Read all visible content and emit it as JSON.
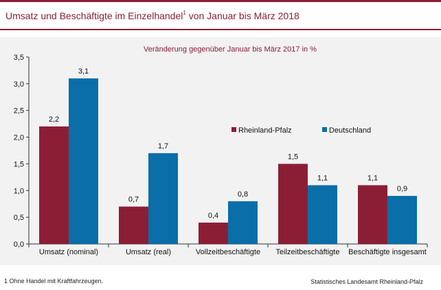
{
  "header": {
    "title": "Umsatz und Beschäftigte im Einzelhandel",
    "title_footnote_mark": "1",
    "title_suffix": " von Januar bis März 2018"
  },
  "chart_data": {
    "type": "bar",
    "subtitle": "Veränderung gegenüber Januar bis März 2017 in %",
    "categories": [
      "Umsatz (nominal)",
      "Umsatz (real)",
      "Vollzeitbeschäftigte",
      "Teilzeitbeschäftigte",
      "Beschäftigte insgesamt"
    ],
    "series": [
      {
        "name": "Rheinland-Pfalz",
        "values": [
          2.2,
          0.7,
          0.4,
          1.5,
          1.1
        ],
        "labels": [
          "2,2",
          "0,7",
          "0,4",
          "1,5",
          "1,1"
        ],
        "color": "#8b1e35"
      },
      {
        "name": "Deutschland",
        "values": [
          3.1,
          1.7,
          0.8,
          1.1,
          0.9
        ],
        "labels": [
          "3,1",
          "1,7",
          "0,8",
          "1,1",
          "0,9"
        ],
        "color": "#0a6ea8"
      }
    ],
    "ylim": [
      0,
      3.5
    ],
    "yticks": [
      0,
      0.5,
      1.0,
      1.5,
      2.0,
      2.5,
      3.0,
      3.5
    ],
    "ytick_labels": [
      "0,0",
      "0,5",
      "1,0",
      "1,5",
      "2,0",
      "2,5",
      "3,0",
      "3,5"
    ],
    "grid": false,
    "legend_position": "inside-right"
  },
  "footer": {
    "footnote": "1 Ohne Handel mit Kraftfahrzeugen.",
    "source": "Statistisches Landesamt Rheinland-Pfalz"
  }
}
